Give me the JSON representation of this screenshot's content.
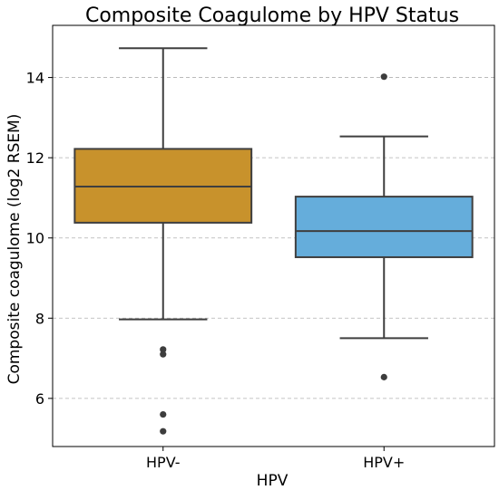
{
  "chart_data": {
    "type": "box",
    "title": "Composite Coagulome by HPV Status",
    "xlabel": "HPV",
    "ylabel": "Composite coagulome (log2 RSEM)",
    "ylim": [
      4.8,
      15.3
    ],
    "y_ticks": [
      6,
      8,
      10,
      12,
      14
    ],
    "grid": "y-dashed",
    "categories": [
      "HPV-",
      "HPV+"
    ],
    "boxes": [
      {
        "category": "HPV-",
        "color": "#c8922c",
        "whisker_low": 7.97,
        "q1": 10.38,
        "median": 11.28,
        "q3": 12.22,
        "whisker_high": 14.73,
        "outliers": [
          7.22,
          7.1,
          5.6,
          5.18
        ]
      },
      {
        "category": "HPV+",
        "color": "#65addb",
        "whisker_low": 7.5,
        "q1": 9.52,
        "median": 10.17,
        "q3": 11.03,
        "whisker_high": 12.53,
        "outliers": [
          14.02,
          6.53
        ]
      }
    ]
  }
}
